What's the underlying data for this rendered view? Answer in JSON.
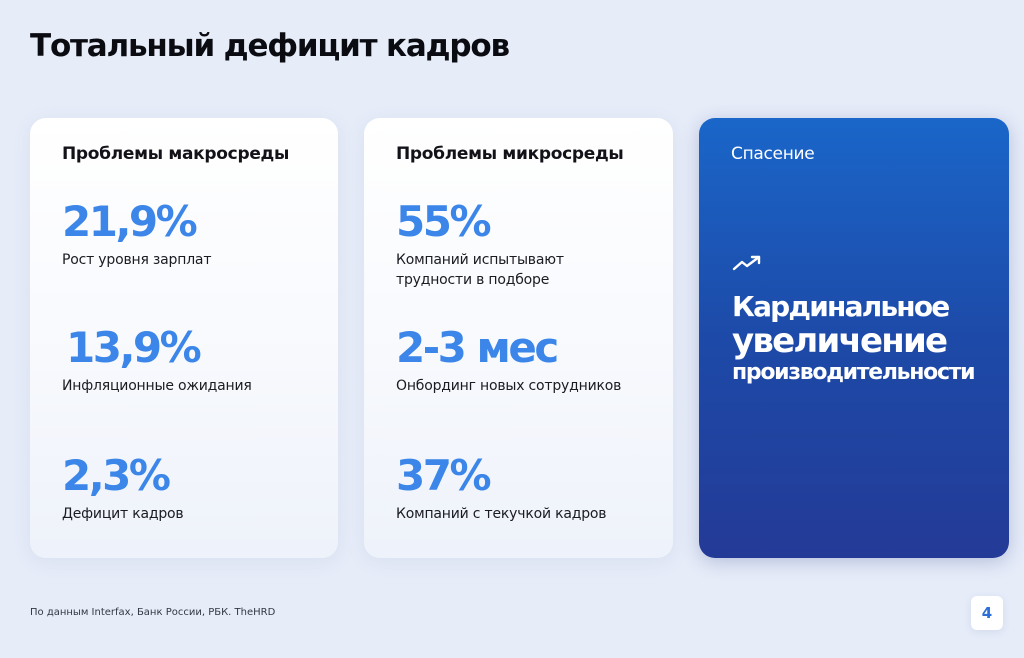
{
  "title": "Тотальный дефицит кадров",
  "macro": {
    "heading": "Проблемы макросреды",
    "stats": [
      {
        "value": "21,9%",
        "label": "Рост уровня зарплат"
      },
      {
        "value": "13,9%",
        "label": "Инфляционные ожидания"
      },
      {
        "value": "2,3%",
        "label": "Дефицит кадров"
      }
    ]
  },
  "micro": {
    "heading": "Проблемы микросреды",
    "stats": [
      {
        "value": "55%",
        "label": "Компаний испытывают трудности в подборе"
      },
      {
        "value": "2-3 мес",
        "label": "Онбординг новых сотрудников"
      },
      {
        "value": "37%",
        "label": "Компаний с текучкой кадров"
      }
    ]
  },
  "solution": {
    "heading": "Спасение",
    "icon": "trend-up-icon",
    "lines": [
      "Кардинальное",
      "увеличение",
      "производительности"
    ]
  },
  "source": "По данным Interfax, Банк России, РБК. TheHRD",
  "page_number": "4",
  "colors": {
    "accent": "#3b86e8",
    "background": "#e6ecf8",
    "solution_card_top": "#1a66c9",
    "solution_card_bottom": "#243a97"
  }
}
